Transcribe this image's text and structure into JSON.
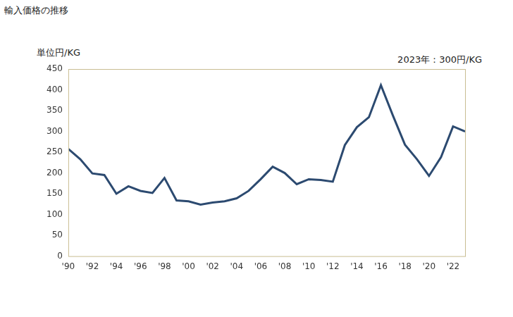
{
  "chart_data": {
    "type": "line",
    "title": "輸入価格の推移",
    "y_label": "単位円/KG",
    "annotation": "2023年：300円/KG",
    "categories": [
      "'90",
      null,
      "'92",
      null,
      "'94",
      null,
      "'96",
      null,
      "'98",
      null,
      "'00",
      null,
      "'02",
      null,
      "'04",
      null,
      "'06",
      null,
      "'08",
      null,
      "'10",
      null,
      "'12",
      null,
      "'14",
      null,
      "'16",
      null,
      "'18",
      null,
      "'20",
      null,
      "'22",
      null
    ],
    "values": [
      258,
      233,
      199,
      195,
      150,
      168,
      157,
      152,
      188,
      134,
      132,
      124,
      129,
      132,
      139,
      157,
      185,
      215,
      200,
      173,
      185,
      183,
      179,
      267,
      310,
      334,
      411,
      338,
      268,
      233,
      193,
      238,
      312,
      300
    ],
    "color": "#2c4a70",
    "ylim": [
      0,
      450
    ],
    "yticks": [
      0,
      50,
      100,
      150,
      200,
      250,
      300,
      350,
      400,
      450
    ],
    "grid": false
  }
}
